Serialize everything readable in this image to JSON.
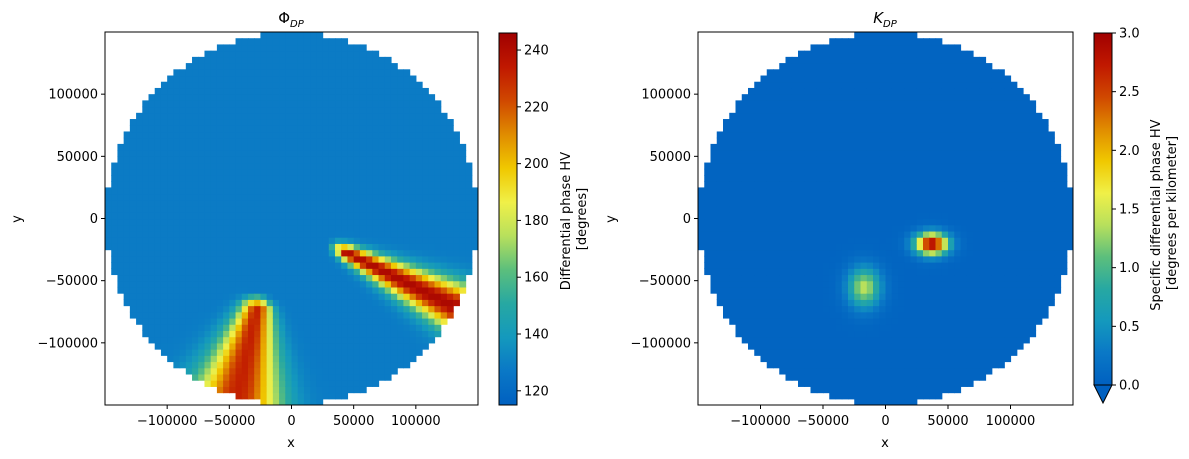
{
  "chart_data": [
    {
      "type": "heatmap",
      "title_base": "Φ",
      "title_sub": "DP",
      "xlabel": "x",
      "ylabel": "y",
      "xlim": [
        -150000,
        150000
      ],
      "ylim": [
        -150000,
        150000
      ],
      "x_ticks": [
        -100000,
        -50000,
        0,
        50000,
        100000
      ],
      "x_tick_labels": [
        "−100000",
        "−50000",
        "0",
        "50000",
        "100000"
      ],
      "y_ticks": [
        -100000,
        -50000,
        0,
        50000,
        100000
      ],
      "y_tick_labels": [
        "−100000",
        "−50000",
        "0",
        "50000",
        "100000"
      ],
      "domain": {
        "shape": "circle",
        "center": [
          0,
          0
        ],
        "radius": 150000
      },
      "background_value": 128,
      "features": [
        {
          "kind": "plume",
          "from": [
            30000,
            -20000
          ],
          "to": [
            140000,
            -75000
          ],
          "peak": 242,
          "width_start": 3000,
          "width_end": 14000
        },
        {
          "kind": "plume",
          "from": [
            -25000,
            -60000
          ],
          "to": [
            -45000,
            -150000
          ],
          "peak": 232,
          "width_start": 6000,
          "width_end": 26000
        }
      ],
      "colorbar": {
        "label_line1": "Differential phase HV",
        "label_line2": "[degrees]",
        "min": 115,
        "max": 246,
        "ticks": [
          120,
          140,
          160,
          180,
          200,
          220,
          240
        ],
        "tick_labels": [
          "120",
          "140",
          "160",
          "180",
          "200",
          "220",
          "240"
        ],
        "extend": "neither"
      }
    },
    {
      "type": "heatmap",
      "title_base": "K",
      "title_sub": "DP",
      "xlabel": "x",
      "ylabel": "y",
      "xlim": [
        -150000,
        150000
      ],
      "ylim": [
        -150000,
        150000
      ],
      "x_ticks": [
        -100000,
        -50000,
        0,
        50000,
        100000
      ],
      "x_tick_labels": [
        "−100000",
        "−50000",
        "0",
        "50000",
        "100000"
      ],
      "y_ticks": [
        -100000,
        -50000,
        0,
        50000,
        100000
      ],
      "y_tick_labels": [
        "−100000",
        "−50000",
        "0",
        "50000",
        "100000"
      ],
      "domain": {
        "shape": "circle",
        "center": [
          0,
          0
        ],
        "radius": 150000
      },
      "background_value": 0.05,
      "features": [
        {
          "kind": "blob",
          "center": [
            37000,
            -20000
          ],
          "peak": 3.0,
          "sx": 9000,
          "sy": 6000
        },
        {
          "kind": "blob",
          "center": [
            -17000,
            -55000
          ],
          "peak": 1.4,
          "sx": 9000,
          "sy": 11000
        }
      ],
      "colorbar": {
        "label_line1": "Specific differential phase HV",
        "label_line2": "[degrees per kilometer]",
        "min": 0,
        "max": 3,
        "ticks": [
          0,
          0.5,
          1,
          1.5,
          2,
          2.5,
          3
        ],
        "tick_labels": [
          "0.0",
          "0.5",
          "1.0",
          "1.5",
          "2.0",
          "2.5",
          "3.0"
        ],
        "extend": "min"
      }
    }
  ],
  "colormap": [
    "#0060c0",
    "#0a78c6",
    "#1499bd",
    "#27a8a2",
    "#5cbf7c",
    "#b8e05c",
    "#f0f048",
    "#f0c800",
    "#e08c00",
    "#d04800",
    "#c01800",
    "#a00000"
  ]
}
